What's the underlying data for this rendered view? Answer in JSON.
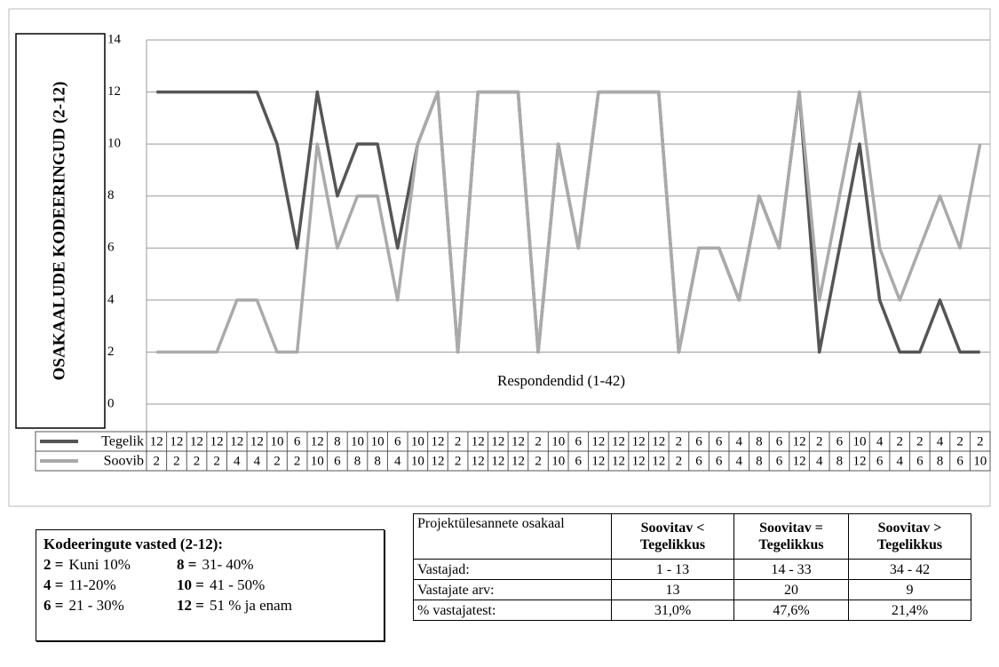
{
  "chart_data": {
    "type": "line",
    "xlabel": "Respondendid (1-42)",
    "ylabel": "OSAKAALUDE KODEERINGUD (2-12)",
    "ylim": [
      0,
      14
    ],
    "yticks": [
      0,
      2,
      4,
      6,
      8,
      10,
      12,
      14
    ],
    "grid": true,
    "series": [
      {
        "name": "Tegelik",
        "color": "#555555",
        "values": [
          12,
          12,
          12,
          12,
          12,
          12,
          10,
          6,
          12,
          8,
          10,
          10,
          6,
          10,
          12,
          2,
          12,
          12,
          12,
          2,
          10,
          6,
          12,
          12,
          12,
          12,
          2,
          6,
          6,
          4,
          8,
          6,
          12,
          2,
          6,
          10,
          4,
          2,
          2,
          4,
          2,
          2
        ]
      },
      {
        "name": "Soovib",
        "color": "#aaaaaa",
        "values": [
          2,
          2,
          2,
          2,
          4,
          4,
          2,
          2,
          10,
          6,
          8,
          8,
          4,
          10,
          12,
          2,
          12,
          12,
          12,
          2,
          10,
          6,
          12,
          12,
          12,
          12,
          2,
          6,
          6,
          4,
          8,
          6,
          12,
          4,
          8,
          12,
          6,
          4,
          6,
          8,
          6,
          10
        ]
      }
    ]
  },
  "legend_box": {
    "title": "Kodeeringute vasted (2-12):",
    "entries": [
      {
        "code": "2 =",
        "text": "Kuni 10%"
      },
      {
        "code": "8 =",
        "text": "31- 40%"
      },
      {
        "code": "4 =",
        "text": "11-20%"
      },
      {
        "code": "10 =",
        "text": "41 - 50%"
      },
      {
        "code": "6 =",
        "text": "21 - 30%"
      },
      {
        "code": "12 =",
        "text": "51 % ja enam"
      }
    ]
  },
  "table": {
    "header": [
      "Projektülesannete osakaal",
      "Soovitav < Tegelikkus",
      "Soovitav = Tegelikkus",
      "Soovitav > Tegelikkus"
    ],
    "rows": [
      [
        "Vastajad:",
        "1 - 13",
        "14 - 33",
        "34 - 42"
      ],
      [
        "Vastajate arv:",
        13,
        20,
        9
      ],
      [
        "% vastajatest:",
        "31,0%",
        "47,6%",
        "21,4%"
      ]
    ]
  }
}
